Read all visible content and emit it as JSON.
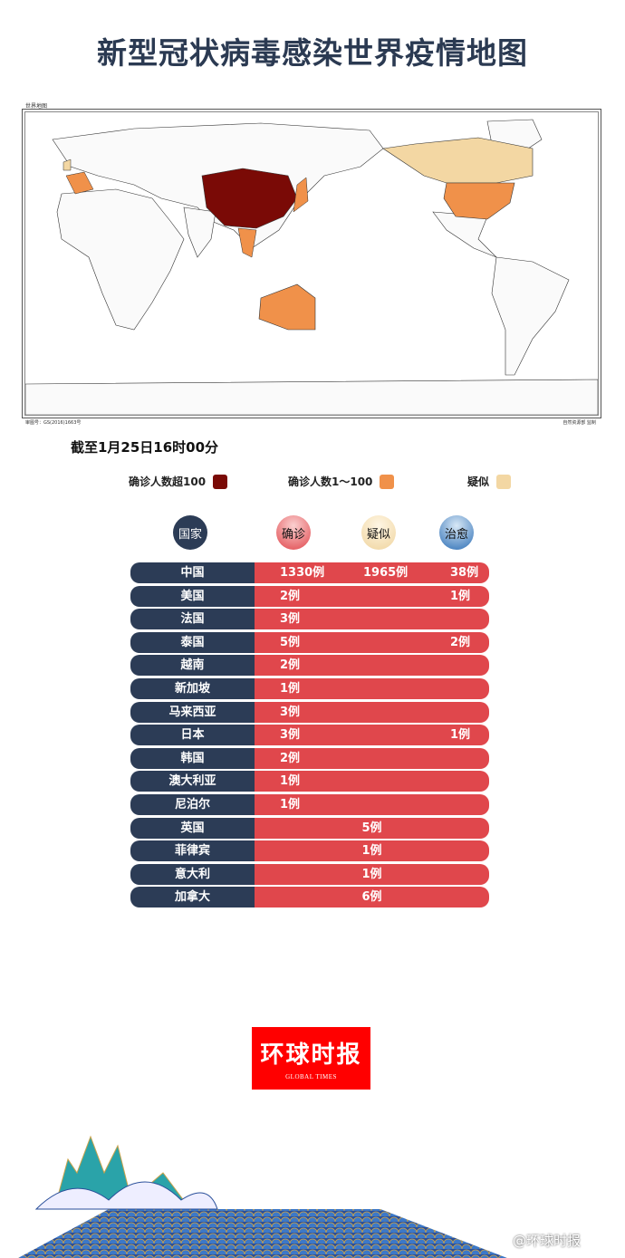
{
  "title": "新型冠状病毒感染世界疫情地图",
  "map": {
    "label": "世界地图",
    "approval_no": "审图号：GS(2016)1663号",
    "publisher": "自然资源部 监制"
  },
  "as_of": "截至1月25日16时00分",
  "legend": [
    {
      "label": "确诊人数超100",
      "color": "#7a0a06"
    },
    {
      "label": "确诊人数1～100",
      "color": "#f0914a"
    },
    {
      "label": "疑似",
      "color": "#f3d7a3"
    }
  ],
  "headers": {
    "country": "国家",
    "confirmed": "确诊",
    "suspected": "疑似",
    "cured": "治愈"
  },
  "rows": [
    {
      "country": "中国",
      "confirmed": "1330例",
      "suspected": "1965例",
      "cured": "38例"
    },
    {
      "country": "美国",
      "confirmed": "2例",
      "suspected": "",
      "cured": "1例"
    },
    {
      "country": "法国",
      "confirmed": "3例",
      "suspected": "",
      "cured": ""
    },
    {
      "country": "泰国",
      "confirmed": "5例",
      "suspected": "",
      "cured": "2例"
    },
    {
      "country": "越南",
      "confirmed": "2例",
      "suspected": "",
      "cured": ""
    },
    {
      "country": "新加坡",
      "confirmed": "1例",
      "suspected": "",
      "cured": ""
    },
    {
      "country": "马来西亚",
      "confirmed": "3例",
      "suspected": "",
      "cured": ""
    },
    {
      "country": "日本",
      "confirmed": "3例",
      "suspected": "",
      "cured": "1例"
    },
    {
      "country": "韩国",
      "confirmed": "2例",
      "suspected": "",
      "cured": ""
    },
    {
      "country": "澳大利亚",
      "confirmed": "1例",
      "suspected": "",
      "cured": ""
    },
    {
      "country": "尼泊尔",
      "confirmed": "1例",
      "suspected": "",
      "cured": ""
    },
    {
      "country": "英国",
      "confirmed": "",
      "suspected": "5例",
      "cured": ""
    },
    {
      "country": "菲律宾",
      "confirmed": "",
      "suspected": "1例",
      "cured": ""
    },
    {
      "country": "意大利",
      "confirmed": "",
      "suspected": "1例",
      "cured": ""
    },
    {
      "country": "加拿大",
      "confirmed": "",
      "suspected": "6例",
      "cured": ""
    }
  ],
  "logo": {
    "cn": "环球时报",
    "en": "GLOBAL TIMES"
  },
  "watermark": "@环球时报"
}
